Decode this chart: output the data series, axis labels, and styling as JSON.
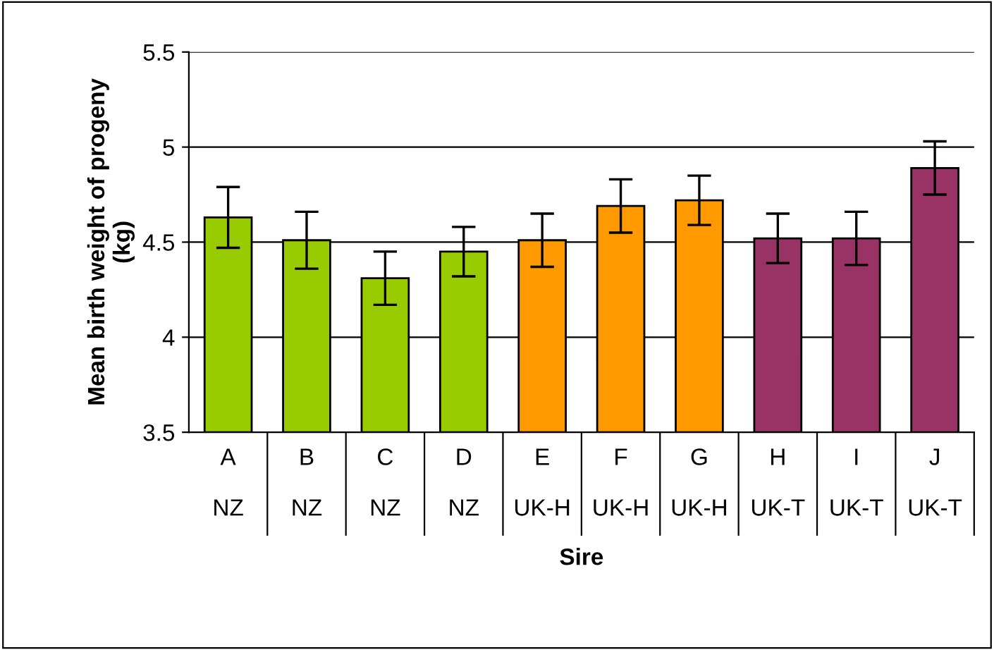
{
  "chart_data": {
    "type": "bar",
    "xlabel": "Sire",
    "ylabel": "Mean birth weight of progeny\n(kg)",
    "categories": [
      "A\n\nNZ",
      "B\n\nNZ",
      "C\n\nNZ",
      "D\n\nNZ",
      "E\n\nUK-H",
      "F\n\nUK-H",
      "G\n\nUK-H",
      "H\n\nUK-T",
      "I\n\nUK-T",
      "J\n\nUK-T"
    ],
    "values": [
      4.63,
      4.51,
      4.31,
      4.45,
      4.51,
      4.69,
      4.72,
      4.52,
      4.52,
      4.89
    ],
    "errors": [
      0.16,
      0.15,
      0.14,
      0.13,
      0.14,
      0.14,
      0.13,
      0.13,
      0.14,
      0.14
    ],
    "colors": [
      "#99cc00",
      "#99cc00",
      "#99cc00",
      "#99cc00",
      "#ff9900",
      "#ff9900",
      "#ff9900",
      "#993366",
      "#993366",
      "#993366"
    ],
    "ylim": [
      3.5,
      5.5
    ],
    "yticks": [
      3.5,
      4,
      4.5,
      5,
      5.5
    ],
    "grid": "y",
    "legend": false
  }
}
